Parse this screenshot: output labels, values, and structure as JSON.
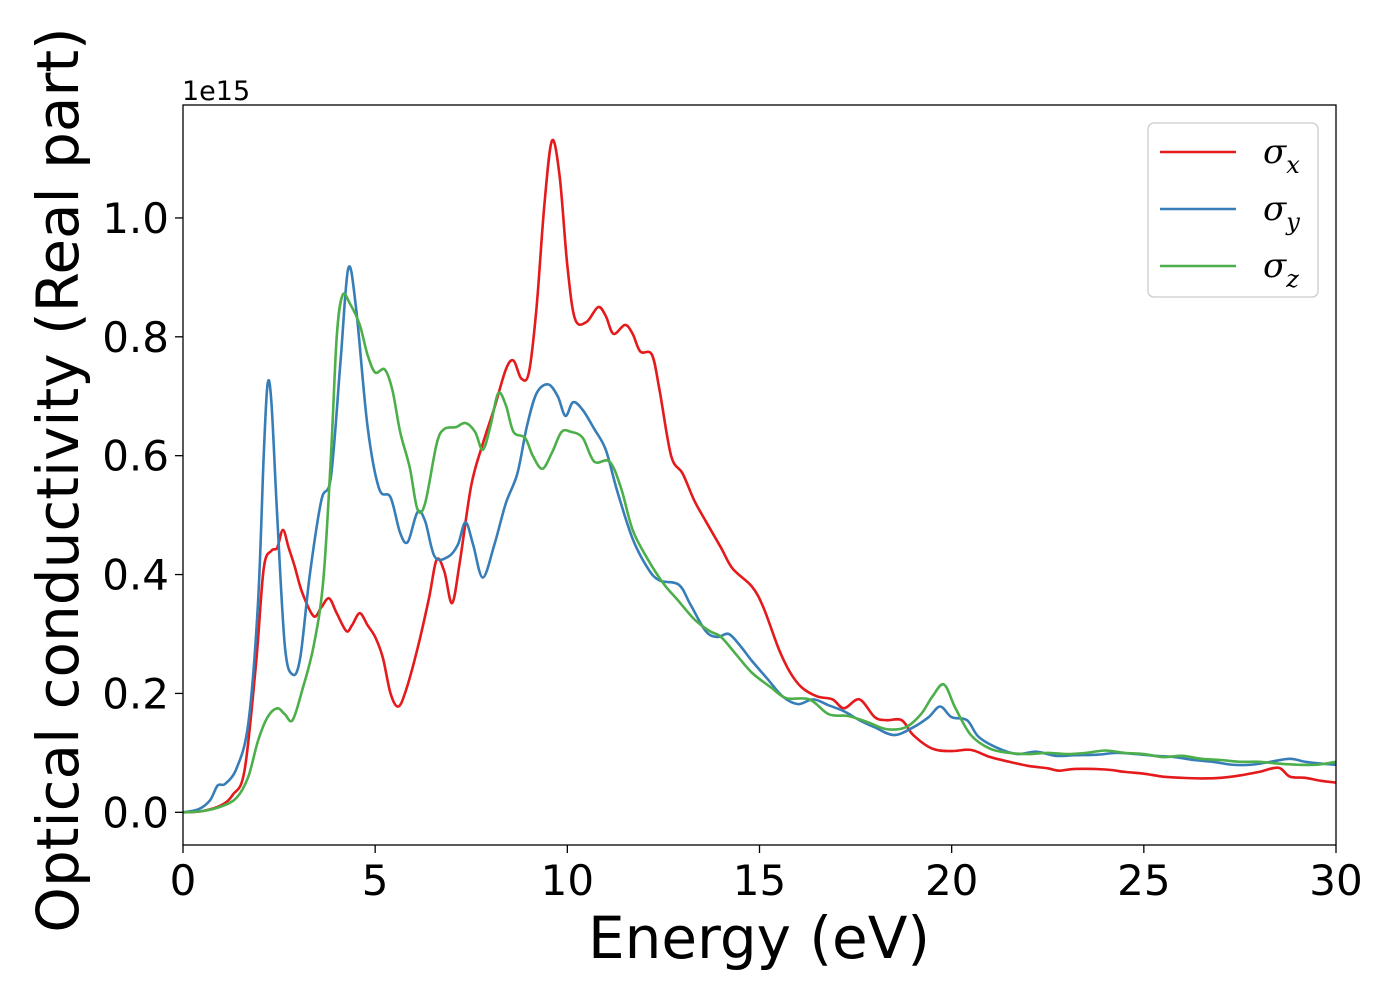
{
  "chart_data": {
    "type": "line",
    "title": "",
    "xlabel": "Energy (eV)",
    "ylabel": "Optical conductivity (Real part)",
    "y_offset_label": "1e15",
    "xlim": [
      0,
      30
    ],
    "ylim": [
      -0.055,
      1.19
    ],
    "x_ticks": [
      0,
      5,
      10,
      15,
      20,
      25,
      30
    ],
    "x_tick_labels": [
      "0",
      "5",
      "10",
      "15",
      "20",
      "25",
      "30"
    ],
    "y_ticks": [
      0.0,
      0.2,
      0.4,
      0.6,
      0.8,
      1.0
    ],
    "y_tick_labels": [
      "0.0",
      "0.2",
      "0.4",
      "0.6",
      "0.8",
      "1.0"
    ],
    "grid": false,
    "legend_position": "top-right",
    "series": [
      {
        "name": "σx",
        "legend_base": "σ",
        "legend_sub": "x",
        "color": "#e41a1c",
        "points": [
          [
            0,
            0
          ],
          [
            0.5,
            0.002
          ],
          [
            1.0,
            0.012
          ],
          [
            1.3,
            0.03
          ],
          [
            1.6,
            0.07
          ],
          [
            1.9,
            0.25
          ],
          [
            2.1,
            0.41
          ],
          [
            2.3,
            0.44
          ],
          [
            2.45,
            0.445
          ],
          [
            2.6,
            0.475
          ],
          [
            2.75,
            0.445
          ],
          [
            2.9,
            0.415
          ],
          [
            3.1,
            0.37
          ],
          [
            3.4,
            0.33
          ],
          [
            3.6,
            0.345
          ],
          [
            3.8,
            0.36
          ],
          [
            4.0,
            0.335
          ],
          [
            4.25,
            0.305
          ],
          [
            4.4,
            0.315
          ],
          [
            4.6,
            0.335
          ],
          [
            4.8,
            0.315
          ],
          [
            5.0,
            0.295
          ],
          [
            5.2,
            0.26
          ],
          [
            5.4,
            0.2
          ],
          [
            5.6,
            0.178
          ],
          [
            5.8,
            0.205
          ],
          [
            6.1,
            0.275
          ],
          [
            6.4,
            0.36
          ],
          [
            6.6,
            0.425
          ],
          [
            6.8,
            0.405
          ],
          [
            7.0,
            0.352
          ],
          [
            7.2,
            0.42
          ],
          [
            7.5,
            0.55
          ],
          [
            7.8,
            0.62
          ],
          [
            8.1,
            0.68
          ],
          [
            8.4,
            0.745
          ],
          [
            8.6,
            0.76
          ],
          [
            8.8,
            0.73
          ],
          [
            9.0,
            0.74
          ],
          [
            9.2,
            0.85
          ],
          [
            9.4,
            1.02
          ],
          [
            9.6,
            1.13
          ],
          [
            9.8,
            1.07
          ],
          [
            10.0,
            0.92
          ],
          [
            10.2,
            0.83
          ],
          [
            10.5,
            0.825
          ],
          [
            10.8,
            0.85
          ],
          [
            11.0,
            0.835
          ],
          [
            11.2,
            0.805
          ],
          [
            11.5,
            0.82
          ],
          [
            11.7,
            0.805
          ],
          [
            11.9,
            0.775
          ],
          [
            12.2,
            0.77
          ],
          [
            12.4,
            0.71
          ],
          [
            12.7,
            0.6
          ],
          [
            13.0,
            0.57
          ],
          [
            13.3,
            0.525
          ],
          [
            13.6,
            0.49
          ],
          [
            14.0,
            0.445
          ],
          [
            14.3,
            0.41
          ],
          [
            14.8,
            0.38
          ],
          [
            15.1,
            0.345
          ],
          [
            15.5,
            0.275
          ],
          [
            15.8,
            0.235
          ],
          [
            16.1,
            0.21
          ],
          [
            16.5,
            0.195
          ],
          [
            16.9,
            0.19
          ],
          [
            17.2,
            0.175
          ],
          [
            17.6,
            0.19
          ],
          [
            18.0,
            0.16
          ],
          [
            18.3,
            0.155
          ],
          [
            18.7,
            0.155
          ],
          [
            19.0,
            0.13
          ],
          [
            19.5,
            0.107
          ],
          [
            20.0,
            0.103
          ],
          [
            20.5,
            0.105
          ],
          [
            21.0,
            0.093
          ],
          [
            21.5,
            0.085
          ],
          [
            22.0,
            0.078
          ],
          [
            22.5,
            0.074
          ],
          [
            22.8,
            0.07
          ],
          [
            23.2,
            0.073
          ],
          [
            24.0,
            0.072
          ],
          [
            24.5,
            0.068
          ],
          [
            25.0,
            0.065
          ],
          [
            25.5,
            0.06
          ],
          [
            26.0,
            0.058
          ],
          [
            26.5,
            0.057
          ],
          [
            27.0,
            0.058
          ],
          [
            27.5,
            0.062
          ],
          [
            28.0,
            0.068
          ],
          [
            28.5,
            0.075
          ],
          [
            28.8,
            0.06
          ],
          [
            29.2,
            0.058
          ],
          [
            29.6,
            0.053
          ],
          [
            30.0,
            0.05
          ]
        ]
      },
      {
        "name": "σy",
        "legend_base": "σ",
        "legend_sub": "y",
        "color": "#377eb8",
        "points": [
          [
            0,
            0
          ],
          [
            0.4,
            0.005
          ],
          [
            0.7,
            0.02
          ],
          [
            0.9,
            0.045
          ],
          [
            1.1,
            0.048
          ],
          [
            1.4,
            0.075
          ],
          [
            1.7,
            0.15
          ],
          [
            1.95,
            0.35
          ],
          [
            2.1,
            0.6
          ],
          [
            2.2,
            0.72
          ],
          [
            2.3,
            0.69
          ],
          [
            2.45,
            0.5
          ],
          [
            2.65,
            0.28
          ],
          [
            2.85,
            0.232
          ],
          [
            3.05,
            0.26
          ],
          [
            3.3,
            0.4
          ],
          [
            3.6,
            0.525
          ],
          [
            3.85,
            0.565
          ],
          [
            4.1,
            0.76
          ],
          [
            4.3,
            0.915
          ],
          [
            4.5,
            0.85
          ],
          [
            4.8,
            0.65
          ],
          [
            5.1,
            0.545
          ],
          [
            5.4,
            0.53
          ],
          [
            5.65,
            0.47
          ],
          [
            5.85,
            0.455
          ],
          [
            6.1,
            0.505
          ],
          [
            6.3,
            0.49
          ],
          [
            6.55,
            0.43
          ],
          [
            6.9,
            0.43
          ],
          [
            7.15,
            0.45
          ],
          [
            7.35,
            0.488
          ],
          [
            7.55,
            0.45
          ],
          [
            7.8,
            0.395
          ],
          [
            8.1,
            0.45
          ],
          [
            8.4,
            0.52
          ],
          [
            8.7,
            0.57
          ],
          [
            8.95,
            0.65
          ],
          [
            9.2,
            0.705
          ],
          [
            9.5,
            0.72
          ],
          [
            9.75,
            0.7
          ],
          [
            9.95,
            0.667
          ],
          [
            10.15,
            0.69
          ],
          [
            10.4,
            0.677
          ],
          [
            10.7,
            0.645
          ],
          [
            11.0,
            0.61
          ],
          [
            11.3,
            0.54
          ],
          [
            11.7,
            0.46
          ],
          [
            12.1,
            0.41
          ],
          [
            12.4,
            0.39
          ],
          [
            12.9,
            0.383
          ],
          [
            13.2,
            0.35
          ],
          [
            13.6,
            0.305
          ],
          [
            13.9,
            0.295
          ],
          [
            14.2,
            0.3
          ],
          [
            14.5,
            0.28
          ],
          [
            14.8,
            0.255
          ],
          [
            15.2,
            0.225
          ],
          [
            15.6,
            0.195
          ],
          [
            16.0,
            0.182
          ],
          [
            16.4,
            0.19
          ],
          [
            16.8,
            0.18
          ],
          [
            17.2,
            0.17
          ],
          [
            17.6,
            0.155
          ],
          [
            18.0,
            0.143
          ],
          [
            18.5,
            0.13
          ],
          [
            19.0,
            0.143
          ],
          [
            19.4,
            0.16
          ],
          [
            19.7,
            0.178
          ],
          [
            20.0,
            0.16
          ],
          [
            20.4,
            0.155
          ],
          [
            20.7,
            0.127
          ],
          [
            21.2,
            0.108
          ],
          [
            21.7,
            0.098
          ],
          [
            22.2,
            0.102
          ],
          [
            22.7,
            0.095
          ],
          [
            23.2,
            0.096
          ],
          [
            23.8,
            0.097
          ],
          [
            24.3,
            0.1
          ],
          [
            24.8,
            0.098
          ],
          [
            25.3,
            0.095
          ],
          [
            25.8,
            0.093
          ],
          [
            26.3,
            0.088
          ],
          [
            26.8,
            0.085
          ],
          [
            27.3,
            0.08
          ],
          [
            27.8,
            0.08
          ],
          [
            28.3,
            0.085
          ],
          [
            28.8,
            0.09
          ],
          [
            29.2,
            0.085
          ],
          [
            29.6,
            0.082
          ],
          [
            30.0,
            0.08
          ]
        ]
      },
      {
        "name": "σz",
        "legend_base": "σ",
        "legend_sub": "z",
        "color": "#4daf4a",
        "points": [
          [
            0,
            0
          ],
          [
            0.5,
            0.002
          ],
          [
            1.0,
            0.01
          ],
          [
            1.4,
            0.025
          ],
          [
            1.7,
            0.06
          ],
          [
            1.95,
            0.12
          ],
          [
            2.2,
            0.16
          ],
          [
            2.45,
            0.175
          ],
          [
            2.65,
            0.165
          ],
          [
            2.85,
            0.155
          ],
          [
            3.1,
            0.205
          ],
          [
            3.4,
            0.28
          ],
          [
            3.65,
            0.39
          ],
          [
            3.85,
            0.6
          ],
          [
            4.0,
            0.8
          ],
          [
            4.15,
            0.87
          ],
          [
            4.35,
            0.855
          ],
          [
            4.6,
            0.82
          ],
          [
            4.8,
            0.77
          ],
          [
            5.0,
            0.74
          ],
          [
            5.25,
            0.745
          ],
          [
            5.45,
            0.71
          ],
          [
            5.65,
            0.64
          ],
          [
            5.9,
            0.58
          ],
          [
            6.1,
            0.51
          ],
          [
            6.3,
            0.52
          ],
          [
            6.6,
            0.62
          ],
          [
            6.8,
            0.645
          ],
          [
            7.1,
            0.648
          ],
          [
            7.35,
            0.655
          ],
          [
            7.6,
            0.64
          ],
          [
            7.8,
            0.61
          ],
          [
            8.0,
            0.65
          ],
          [
            8.2,
            0.705
          ],
          [
            8.4,
            0.685
          ],
          [
            8.6,
            0.64
          ],
          [
            8.9,
            0.63
          ],
          [
            9.1,
            0.6
          ],
          [
            9.35,
            0.578
          ],
          [
            9.6,
            0.605
          ],
          [
            9.85,
            0.64
          ],
          [
            10.1,
            0.64
          ],
          [
            10.4,
            0.63
          ],
          [
            10.7,
            0.59
          ],
          [
            11.1,
            0.59
          ],
          [
            11.4,
            0.545
          ],
          [
            11.7,
            0.475
          ],
          [
            12.1,
            0.425
          ],
          [
            12.5,
            0.385
          ],
          [
            12.9,
            0.355
          ],
          [
            13.3,
            0.325
          ],
          [
            13.7,
            0.305
          ],
          [
            14.0,
            0.295
          ],
          [
            14.4,
            0.265
          ],
          [
            14.8,
            0.235
          ],
          [
            15.3,
            0.21
          ],
          [
            15.7,
            0.192
          ],
          [
            16.3,
            0.19
          ],
          [
            16.8,
            0.165
          ],
          [
            17.3,
            0.162
          ],
          [
            17.8,
            0.152
          ],
          [
            18.3,
            0.14
          ],
          [
            18.8,
            0.143
          ],
          [
            19.2,
            0.165
          ],
          [
            19.5,
            0.195
          ],
          [
            19.8,
            0.215
          ],
          [
            20.1,
            0.175
          ],
          [
            20.5,
            0.13
          ],
          [
            21.0,
            0.107
          ],
          [
            21.5,
            0.1
          ],
          [
            22.0,
            0.098
          ],
          [
            22.5,
            0.1
          ],
          [
            23.0,
            0.098
          ],
          [
            23.5,
            0.1
          ],
          [
            24.0,
            0.104
          ],
          [
            24.5,
            0.1
          ],
          [
            25.0,
            0.098
          ],
          [
            25.5,
            0.093
          ],
          [
            26.0,
            0.095
          ],
          [
            26.5,
            0.09
          ],
          [
            27.0,
            0.088
          ],
          [
            27.5,
            0.085
          ],
          [
            28.0,
            0.085
          ],
          [
            28.5,
            0.082
          ],
          [
            29.0,
            0.08
          ],
          [
            29.5,
            0.08
          ],
          [
            30.0,
            0.085
          ]
        ]
      }
    ]
  }
}
